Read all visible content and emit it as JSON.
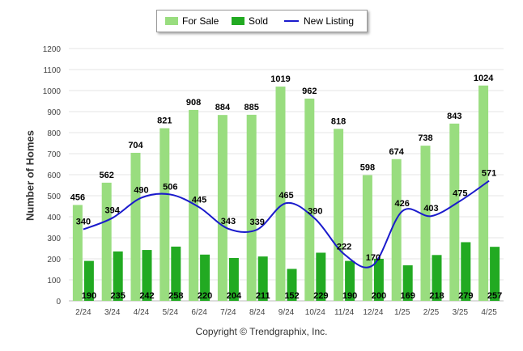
{
  "chart_data": {
    "type": "bar",
    "categories": [
      "2/24",
      "3/24",
      "4/24",
      "5/24",
      "6/24",
      "7/24",
      "8/24",
      "9/24",
      "10/24",
      "11/24",
      "12/24",
      "1/25",
      "2/25",
      "3/25",
      "4/25"
    ],
    "series": [
      {
        "name": "For Sale",
        "type": "bar",
        "color": "#99dd7f",
        "values": [
          456,
          562,
          704,
          821,
          908,
          884,
          885,
          1019,
          962,
          818,
          598,
          674,
          738,
          843,
          1024
        ]
      },
      {
        "name": "Sold",
        "type": "bar",
        "color": "#22aa22",
        "values": [
          190,
          235,
          242,
          258,
          220,
          204,
          211,
          152,
          229,
          190,
          200,
          169,
          218,
          279,
          257
        ]
      },
      {
        "name": "New Listing",
        "type": "line",
        "color": "#1a1acc",
        "values": [
          340,
          394,
          490,
          506,
          445,
          343,
          339,
          465,
          390,
          222,
          170,
          426,
          403,
          475,
          571
        ]
      }
    ],
    "title": "",
    "xlabel": "",
    "ylabel": "Number of Homes",
    "ylim": [
      0,
      1200
    ],
    "yticks": [
      0,
      100,
      200,
      300,
      400,
      500,
      600,
      700,
      800,
      900,
      1000,
      1100,
      1200
    ],
    "grid": true,
    "legend_position": "top-center"
  },
  "footer": {
    "copyright": "Copyright © Trendgraphix, Inc."
  }
}
